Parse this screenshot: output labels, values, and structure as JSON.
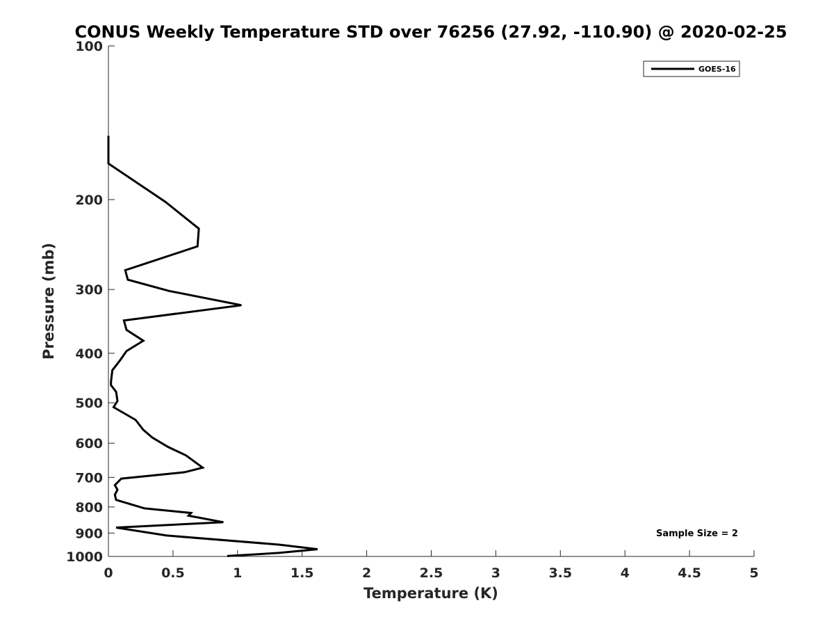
{
  "chart_data": {
    "type": "line",
    "title": "CONUS Weekly Temperature STD over 76256 (27.92, -110.90) @ 2020-02-25",
    "xlabel": "Temperature (K)",
    "ylabel": "Pressure (mb)",
    "xlim": [
      0,
      5
    ],
    "ylim": [
      100,
      1000
    ],
    "y_scale": "log",
    "y_reversed": true,
    "x_ticks": [
      "0",
      "0.5",
      "1",
      "1.5",
      "2",
      "2.5",
      "3",
      "3.5",
      "4",
      "4.5",
      "5"
    ],
    "x_tick_values": [
      0,
      0.5,
      1,
      1.5,
      2,
      2.5,
      3,
      3.5,
      4,
      4.5,
      5
    ],
    "y_ticks": [
      "100",
      "200",
      "300",
      "400",
      "500",
      "600",
      "700",
      "800",
      "900",
      "1000"
    ],
    "y_tick_values": [
      100,
      200,
      300,
      400,
      500,
      600,
      700,
      800,
      900,
      1000
    ],
    "grid": false,
    "legend_position": "top-right",
    "annotation": "Sample Size = 2",
    "series": [
      {
        "name": "GOES-16",
        "color": "#000000",
        "points": [
          [
            0.0,
            150
          ],
          [
            0.0,
            170
          ],
          [
            0.44,
            202
          ],
          [
            0.7,
            228
          ],
          [
            0.69,
            247
          ],
          [
            0.13,
            275
          ],
          [
            0.15,
            287
          ],
          [
            0.47,
            302
          ],
          [
            1.03,
            322
          ],
          [
            0.12,
            345
          ],
          [
            0.14,
            360
          ],
          [
            0.27,
            378
          ],
          [
            0.14,
            396
          ],
          [
            0.09,
            413
          ],
          [
            0.03,
            432
          ],
          [
            0.02,
            455
          ],
          [
            0.02,
            462
          ],
          [
            0.06,
            476
          ],
          [
            0.07,
            496
          ],
          [
            0.04,
            510
          ],
          [
            0.21,
            540
          ],
          [
            0.27,
            565
          ],
          [
            0.34,
            585
          ],
          [
            0.46,
            610
          ],
          [
            0.6,
            634
          ],
          [
            0.73,
            670
          ],
          [
            0.59,
            684
          ],
          [
            0.1,
            704
          ],
          [
            0.05,
            725
          ],
          [
            0.07,
            740
          ],
          [
            0.05,
            757
          ],
          [
            0.06,
            775
          ],
          [
            0.28,
            805
          ],
          [
            0.64,
            822
          ],
          [
            0.62,
            832
          ],
          [
            0.89,
            857
          ],
          [
            0.06,
            878
          ],
          [
            0.45,
            910
          ],
          [
            1.32,
            948
          ],
          [
            1.62,
            968
          ],
          [
            1.32,
            984
          ],
          [
            0.92,
            998
          ]
        ]
      }
    ]
  }
}
